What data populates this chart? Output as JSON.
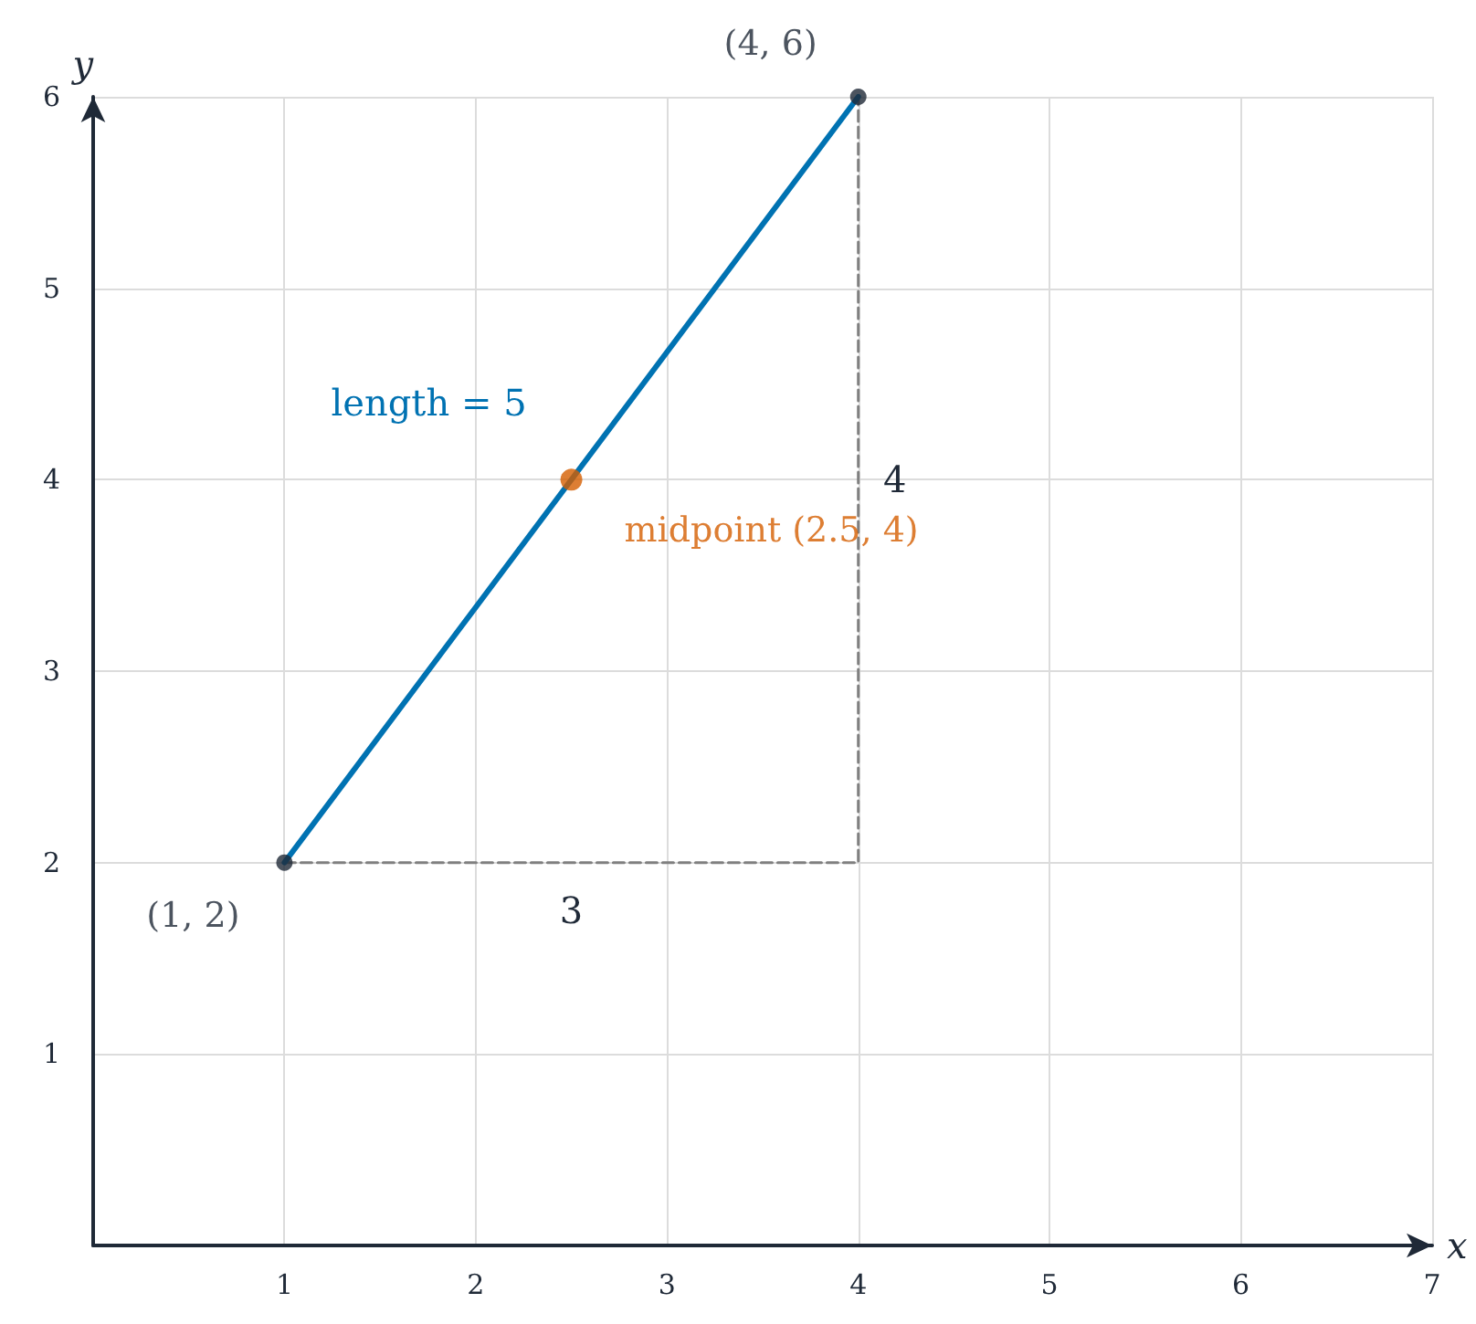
{
  "chart_data": {
    "type": "line",
    "xlabel": "x",
    "ylabel": "y",
    "xlim": [
      0,
      7
    ],
    "ylim": [
      0,
      6
    ],
    "xticks": [
      1,
      2,
      3,
      4,
      5,
      6,
      7
    ],
    "yticks": [
      1,
      2,
      3,
      4,
      5,
      6
    ],
    "grid": true,
    "series": [
      {
        "type": "line",
        "color": "#808080",
        "line_style": "dashed",
        "marker": "none",
        "x": [
          1,
          4,
          4
        ],
        "values": [
          2,
          2,
          6
        ]
      },
      {
        "color": "#0072b2",
        "line_style": "solid",
        "marker": "none",
        "x": [
          1,
          4
        ],
        "values": [
          2,
          6
        ]
      },
      {
        "type": "scatter",
        "color": "#1f2937",
        "marker": "circle",
        "x": [
          1,
          4
        ],
        "values": [
          2,
          6
        ],
        "value_labels": [
          "(1, 2)",
          "(4, 6)"
        ]
      },
      {
        "type": "scatter",
        "color": "#d55e00",
        "marker": "circle",
        "x": [
          2.5
        ],
        "values": [
          4
        ],
        "value_labels": [
          "midpoint (2.5, 4)"
        ]
      }
    ],
    "annotations": [
      "length = 5",
      "3",
      "4"
    ]
  }
}
